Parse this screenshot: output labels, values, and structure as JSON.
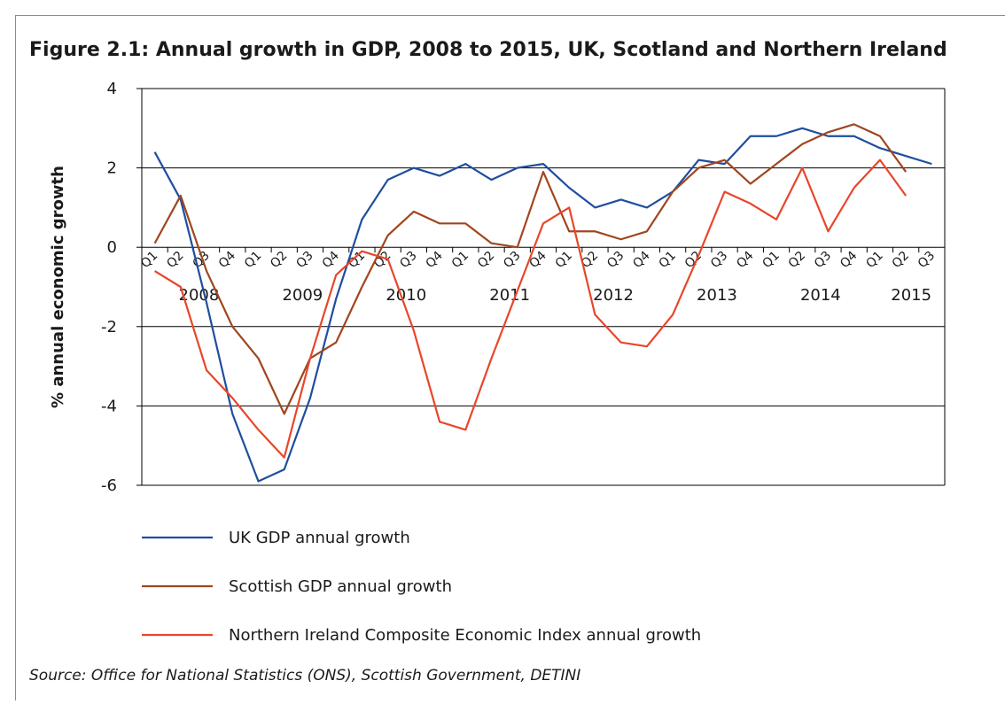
{
  "chart_data": {
    "type": "line",
    "title": "Figure 2.1: Annual growth in GDP, 2008 to 2015, UK, Scotland and Northern Ireland",
    "y_label": "% annual economic growth",
    "source": "Source: Office for National Statistics (ONS), Scottish Government, DETINI",
    "categories": [
      "Q1",
      "Q2",
      "Q3",
      "Q4",
      "Q1",
      "Q2",
      "Q3",
      "Q4",
      "Q1",
      "Q2",
      "Q3",
      "Q4",
      "Q1",
      "Q2",
      "Q3",
      "Q4",
      "Q1",
      "Q2",
      "Q3",
      "Q4",
      "Q1",
      "Q2",
      "Q3",
      "Q4",
      "Q1",
      "Q2",
      "Q3",
      "Q4",
      "Q1",
      "Q2",
      "Q3"
    ],
    "category_groups": [
      "2008",
      "2009",
      "2010",
      "2011",
      "2012",
      "2013",
      "2014",
      "2015"
    ],
    "ylim": [
      -6,
      4
    ],
    "yticks": [
      -6,
      -4,
      -2,
      0,
      2,
      4
    ],
    "grid": true,
    "series": [
      {
        "name": "UK GDP annual growth",
        "color": "#1f4e9e",
        "values": [
          2.4,
          1.2,
          -1.4,
          -4.2,
          -5.9,
          -5.6,
          -3.8,
          -1.3,
          0.7,
          1.7,
          2.0,
          1.8,
          2.1,
          1.7,
          2.0,
          2.1,
          1.5,
          1.0,
          1.2,
          1.0,
          1.4,
          2.2,
          2.1,
          2.8,
          2.8,
          3.0,
          2.8,
          2.8,
          2.5,
          2.3,
          2.1
        ]
      },
      {
        "name": "Scottish GDP annual growth",
        "color": "#a0461e",
        "values": [
          0.1,
          1.3,
          -0.6,
          -2.0,
          -2.8,
          -4.2,
          -2.8,
          -2.4,
          -1.0,
          0.3,
          0.9,
          0.6,
          0.6,
          0.1,
          0.0,
          1.9,
          0.4,
          0.4,
          0.2,
          0.4,
          1.4,
          2.0,
          2.2,
          1.6,
          2.1,
          2.6,
          2.9,
          3.1,
          2.8,
          1.9,
          null
        ]
      },
      {
        "name": "Northern Ireland Composite Economic Index annual growth",
        "color": "#e8462a",
        "values": [
          -0.6,
          -1.0,
          -3.1,
          -3.8,
          -4.6,
          -5.3,
          -2.8,
          -0.7,
          -0.1,
          -0.3,
          -2.1,
          -4.4,
          -4.6,
          -2.8,
          -1.1,
          0.6,
          1.0,
          -1.7,
          -2.4,
          -2.5,
          -1.7,
          -0.2,
          1.4,
          1.1,
          0.7,
          2.0,
          0.4,
          1.5,
          2.2,
          1.3,
          null
        ]
      }
    ]
  }
}
